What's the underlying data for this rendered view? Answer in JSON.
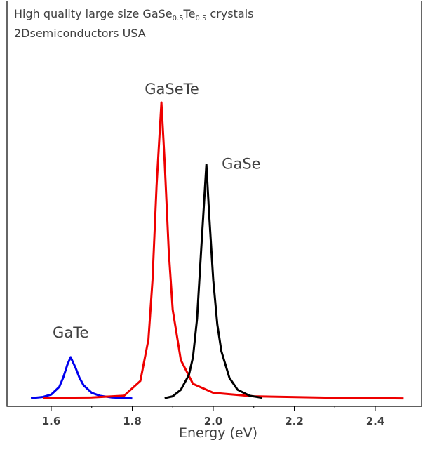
{
  "chart_data": {
    "type": "line",
    "title": {
      "prefix": "High quality large size GaSe",
      "sub1": "0.5",
      "mid": "Te",
      "sub2": "0.5",
      "suffix": " crystals"
    },
    "subtitle": "2Dsemiconductors USA",
    "xlabel": "Energy (eV)",
    "ylabel": "",
    "xlim": [
      1.5,
      2.5
    ],
    "ylim": [
      0,
      1.0
    ],
    "x_ticks": [
      1.6,
      1.8,
      2.0,
      2.2,
      2.4
    ],
    "x_tick_labels": [
      "1.6",
      "1.8",
      "2.0",
      "2.2",
      "2.4"
    ],
    "grid": false,
    "series": [
      {
        "name": "GaTe",
        "color": "#0000ee",
        "peak_x": 1.648,
        "peak_y": 0.14,
        "x_range": [
          1.55,
          1.8
        ],
        "x": [
          1.55,
          1.58,
          1.6,
          1.62,
          1.63,
          1.64,
          1.648,
          1.66,
          1.67,
          1.68,
          1.7,
          1.72,
          1.75,
          1.8
        ],
        "y": [
          0.002,
          0.006,
          0.014,
          0.04,
          0.072,
          0.115,
          0.14,
          0.105,
          0.07,
          0.045,
          0.02,
          0.01,
          0.004,
          0.001
        ]
      },
      {
        "name": "GaSeTe",
        "color": "#ee0000",
        "peak_x": 1.872,
        "peak_y": 1.0,
        "x_range": [
          1.58,
          2.47
        ],
        "x": [
          1.58,
          1.7,
          1.78,
          1.82,
          1.84,
          1.85,
          1.86,
          1.872,
          1.88,
          1.89,
          1.9,
          1.92,
          1.95,
          2.0,
          2.1,
          2.3,
          2.47
        ],
        "y": [
          0.003,
          0.004,
          0.01,
          0.06,
          0.2,
          0.4,
          0.72,
          1.0,
          0.8,
          0.5,
          0.3,
          0.13,
          0.05,
          0.02,
          0.008,
          0.003,
          0.001
        ]
      },
      {
        "name": "GaSe",
        "color": "#000000",
        "peak_x": 1.983,
        "peak_y": 0.79,
        "x_range": [
          1.88,
          2.12
        ],
        "x": [
          1.88,
          1.9,
          1.92,
          1.94,
          1.95,
          1.96,
          1.97,
          1.983,
          1.99,
          2.0,
          2.01,
          2.02,
          2.04,
          2.06,
          2.09,
          2.12
        ],
        "y": [
          0.002,
          0.008,
          0.03,
          0.08,
          0.14,
          0.27,
          0.5,
          0.79,
          0.62,
          0.4,
          0.25,
          0.16,
          0.07,
          0.03,
          0.01,
          0.003
        ]
      }
    ]
  }
}
